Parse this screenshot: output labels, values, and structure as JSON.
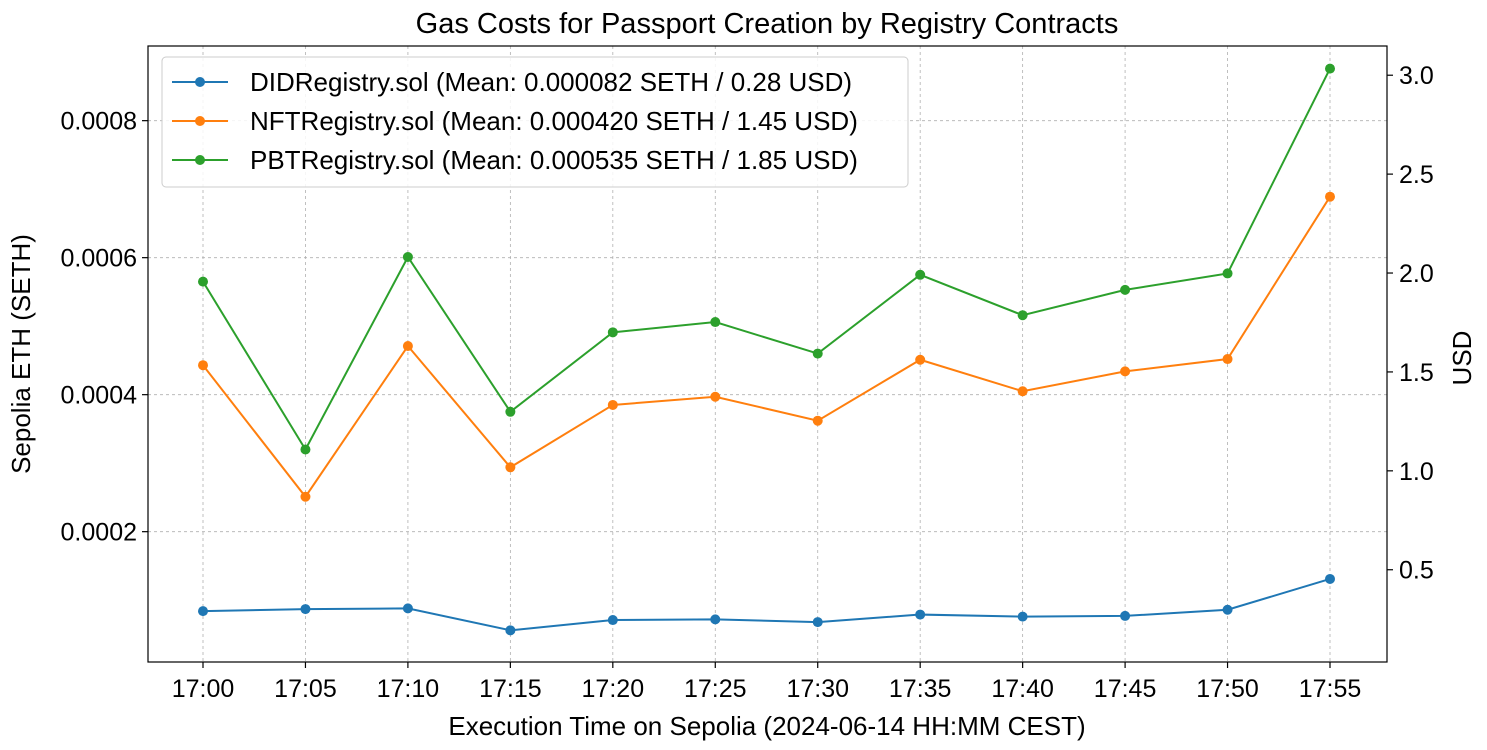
{
  "chart_data": {
    "type": "line",
    "title": "Gas Costs for Passport Creation by Registry Contracts",
    "xlabel": "Execution Time on Sepolia (2024-06-14 HH:MM CEST)",
    "ylabel": "Sepolia ETH (SETH)",
    "ylabel_right": "USD",
    "x": [
      "17:00",
      "17:05",
      "17:10",
      "17:15",
      "17:20",
      "17:25",
      "17:30",
      "17:35",
      "17:40",
      "17:45",
      "17:50",
      "17:55"
    ],
    "ylim": [
      9.75e-06,
      0.000909
    ],
    "ylim_right": [
      0.0336,
      3.1477
    ],
    "yticks": [
      0.0002,
      0.0004,
      0.0006,
      0.0008
    ],
    "yticks_right": [
      0.5,
      1.0,
      1.5,
      2.0,
      2.5,
      3.0
    ],
    "ytick_labels": [
      "0.0002",
      "0.0004",
      "0.0006",
      "0.0008"
    ],
    "ytick_labels_right": [
      "0.5",
      "1.0",
      "1.5",
      "2.0",
      "2.5",
      "3.0"
    ],
    "grid": true,
    "legend_position": "top-left",
    "series": [
      {
        "name": "DIDRegistry.sol (Mean: 0.000082 SETH / 0.28 USD)",
        "color": "#1f77b4",
        "values": [
          8.4e-05,
          8.7e-05,
          8.8e-05,
          5.6e-05,
          7.1e-05,
          7.2e-05,
          6.8e-05,
          7.9e-05,
          7.6e-05,
          7.7e-05,
          8.6e-05,
          0.000131
        ]
      },
      {
        "name": "NFTRegistry.sol (Mean: 0.000420 SETH / 1.45 USD)",
        "color": "#ff7f0e",
        "values": [
          0.000443,
          0.000251,
          0.000471,
          0.000294,
          0.000385,
          0.000397,
          0.000362,
          0.000451,
          0.000405,
          0.000434,
          0.000452,
          0.000689
        ]
      },
      {
        "name": "PBTRegistry.sol (Mean: 0.000535 SETH / 1.85 USD)",
        "color": "#2ca02c",
        "values": [
          0.000565,
          0.00032,
          0.000601,
          0.000375,
          0.000491,
          0.000506,
          0.00046,
          0.000575,
          0.000516,
          0.000553,
          0.000577,
          0.000876
        ]
      }
    ]
  }
}
